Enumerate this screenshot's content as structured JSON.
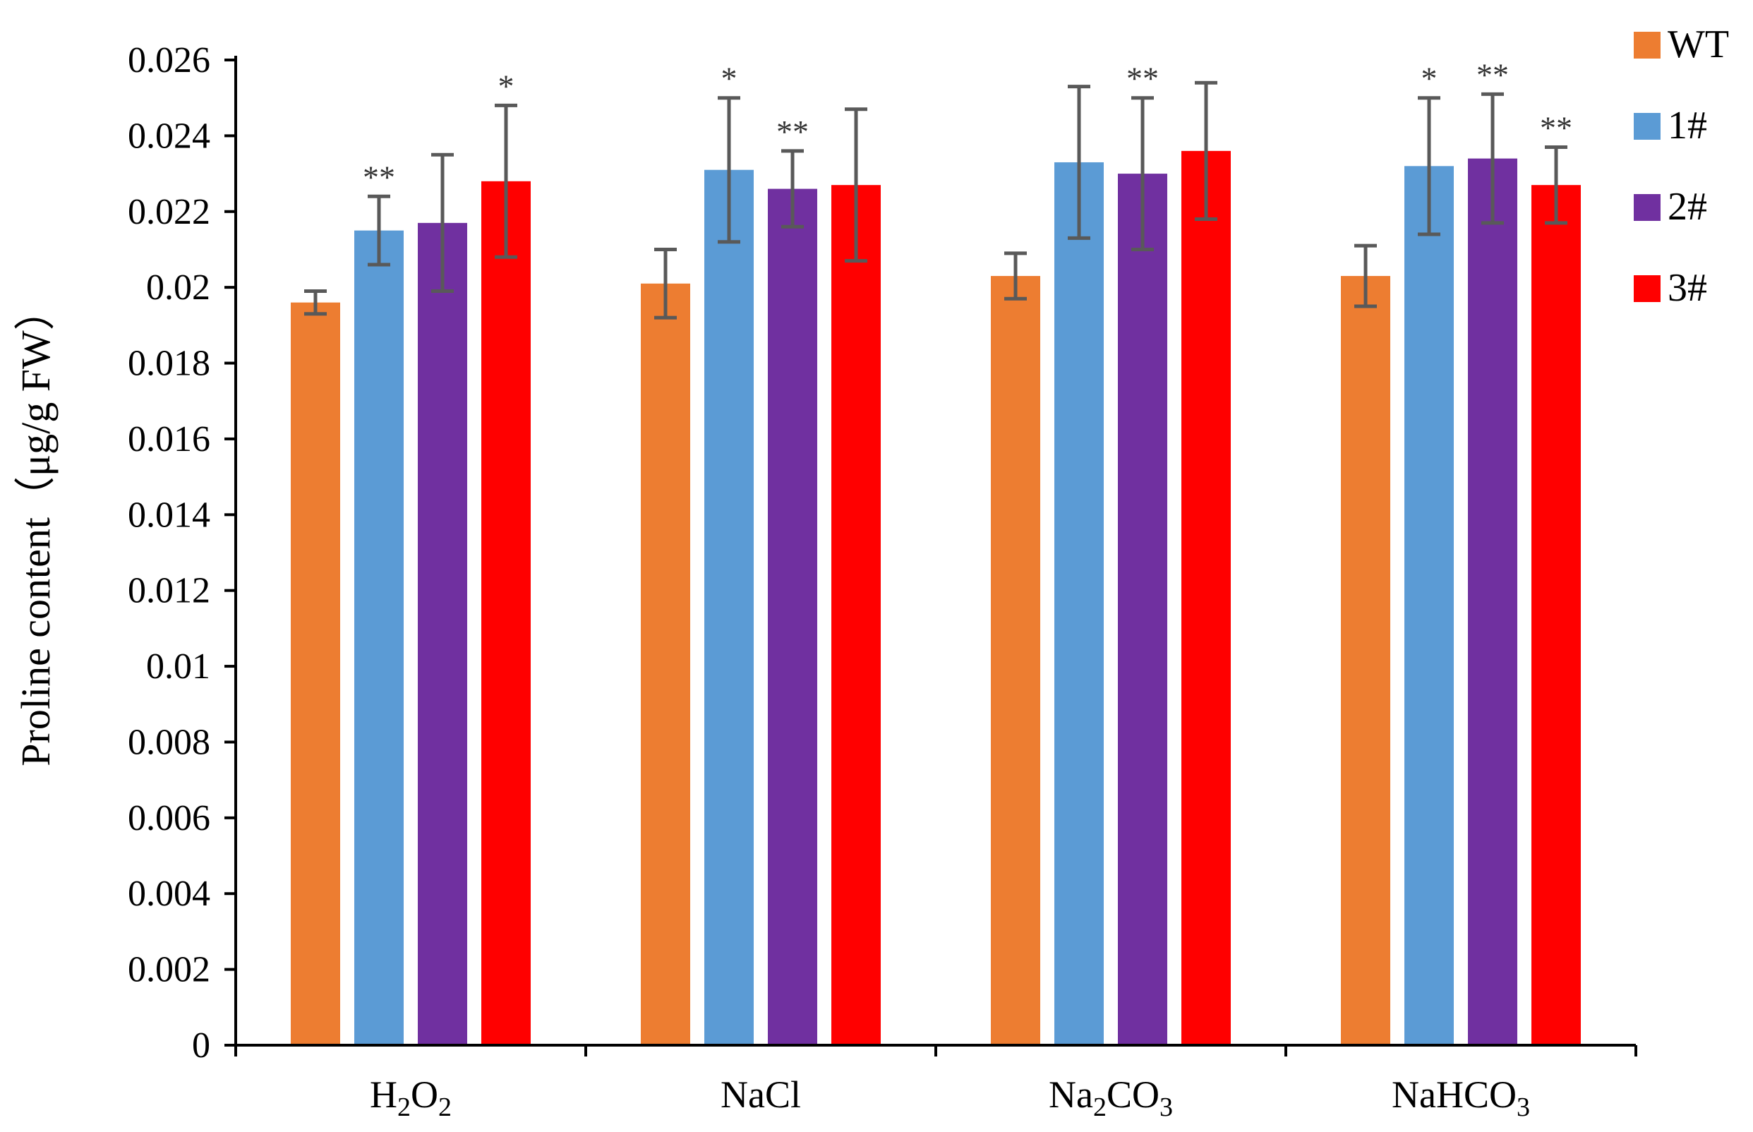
{
  "chart_data": {
    "type": "bar",
    "title": "",
    "xlabel": "",
    "ylabel": "Proline content（μg/g FW）",
    "ylim": [
      0,
      0.026
    ],
    "yticks": [
      "0",
      "0.002",
      "0.004",
      "0.006",
      "0.008",
      "0.01",
      "0.012",
      "0.014",
      "0.016",
      "0.018",
      "0.02",
      "0.022",
      "0.024",
      "0.026"
    ],
    "categories": [
      {
        "base": "H",
        "parts": [
          [
            "H",
            false
          ],
          [
            "2",
            true
          ],
          [
            "O",
            false
          ],
          [
            "2",
            true
          ]
        ]
      },
      {
        "base": "NaCl",
        "parts": [
          [
            "NaCl",
            false
          ]
        ]
      },
      {
        "base": "Na",
        "parts": [
          [
            "Na",
            false
          ],
          [
            "2",
            true
          ],
          [
            "CO",
            false
          ],
          [
            "3",
            true
          ]
        ]
      },
      {
        "base": "NaHCO",
        "parts": [
          [
            "NaHCO",
            false
          ],
          [
            "3",
            true
          ]
        ]
      }
    ],
    "category_text": [
      "H2O2",
      "NaCl",
      "Na2CO3",
      "NaHCO3"
    ],
    "legend_position": "top-right",
    "grid": false,
    "series": [
      {
        "name": "WT",
        "color": "#ED7D31",
        "values": [
          0.0196,
          0.0201,
          0.0203,
          0.0203
        ],
        "errors": [
          0.0003,
          0.0009,
          0.0006,
          0.0008
        ],
        "significance": [
          "",
          "",
          "",
          ""
        ]
      },
      {
        "name": "1#",
        "color": "#5B9BD5",
        "values": [
          0.0215,
          0.0231,
          0.0233,
          0.0232
        ],
        "errors": [
          0.0009,
          0.0019,
          0.002,
          0.0018
        ],
        "significance": [
          "**",
          "*",
          "",
          "*"
        ]
      },
      {
        "name": "2#",
        "color": "#7030A0",
        "values": [
          0.0217,
          0.0226,
          0.023,
          0.0234
        ],
        "errors": [
          0.0018,
          0.001,
          0.002,
          0.0017
        ],
        "significance": [
          "",
          "**",
          "**",
          "**"
        ]
      },
      {
        "name": "3#",
        "color": "#FF0000",
        "values": [
          0.0228,
          0.0227,
          0.0236,
          0.0227
        ],
        "errors": [
          0.002,
          0.002,
          0.0018,
          0.001
        ],
        "significance": [
          "*",
          "",
          "",
          "**"
        ]
      }
    ]
  }
}
